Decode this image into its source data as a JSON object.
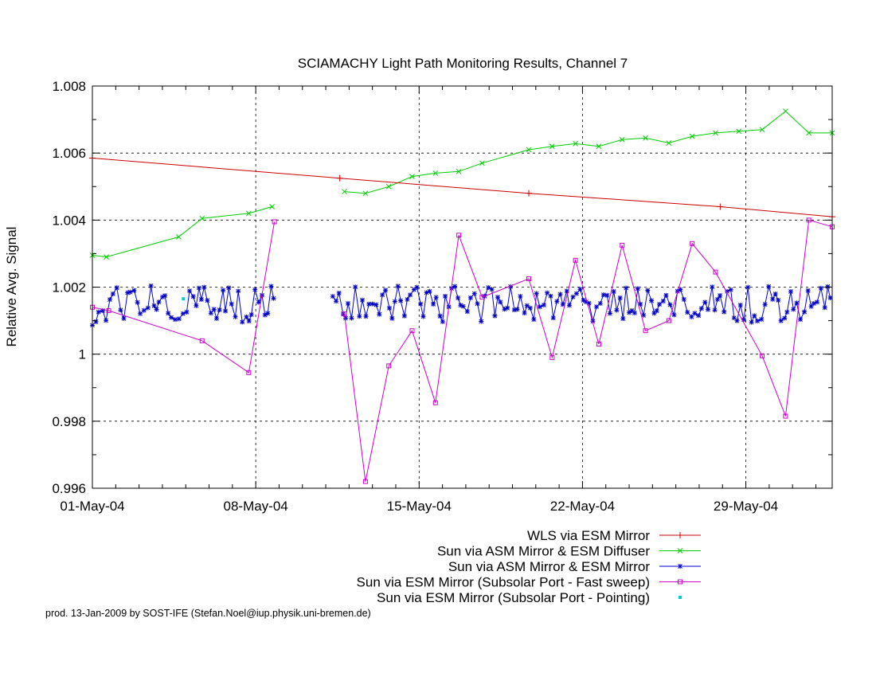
{
  "chart_data": {
    "type": "line",
    "title": "SCIAMACHY Light Path Monitoring Results, Channel 7",
    "xlabel": "",
    "ylabel": "Relative Avg. Signal",
    "xlim": [
      0,
      31.7
    ],
    "ylim": [
      0.996,
      1.008
    ],
    "grid": true,
    "legend_placement": "below",
    "x_ticks": [
      {
        "value": 0,
        "label": "01-May-04"
      },
      {
        "value": 7,
        "label": "08-May-04"
      },
      {
        "value": 14,
        "label": "15-May-04"
      },
      {
        "value": 21,
        "label": "22-May-04"
      },
      {
        "value": 28,
        "label": "29-May-04"
      }
    ],
    "y_ticks": [
      {
        "value": 0.996,
        "label": "0.996"
      },
      {
        "value": 0.998,
        "label": "0.998"
      },
      {
        "value": 1.0,
        "label": "1"
      },
      {
        "value": 1.002,
        "label": "1.002"
      },
      {
        "value": 1.004,
        "label": "1.004"
      },
      {
        "value": 1.006,
        "label": "1.006"
      },
      {
        "value": 1.008,
        "label": "1.008"
      }
    ],
    "series": [
      {
        "name": "WLS via ESM Mirror",
        "color": "#cc0000",
        "marker": "plus",
        "points": [
          [
            0,
            1.00585
          ],
          [
            10.6,
            1.00525
          ],
          [
            18.7,
            1.0048
          ],
          [
            26.9,
            1.0044
          ],
          [
            31.7,
            1.0041
          ]
        ]
      },
      {
        "name": "Sun via ASM Mirror & ESM Diffuser",
        "color": "#00cc00",
        "marker": "x",
        "points": [
          [
            0,
            1.00295
          ],
          [
            0.6,
            1.0029
          ],
          [
            3.7,
            1.0035
          ],
          [
            4.7,
            1.00405
          ],
          [
            6.7,
            1.0042
          ],
          [
            7.7,
            1.0044
          ],
          null,
          [
            10.8,
            1.00485
          ],
          [
            11.7,
            1.0048
          ],
          [
            12.7,
            1.005
          ],
          [
            13.7,
            1.0053
          ],
          [
            14.7,
            1.0054
          ],
          [
            15.7,
            1.00545
          ],
          [
            16.7,
            1.0057
          ],
          [
            18.7,
            1.0061
          ],
          [
            19.7,
            1.0062
          ],
          [
            20.7,
            1.00628
          ],
          [
            21.7,
            1.0062
          ],
          [
            22.7,
            1.0064
          ],
          [
            23.7,
            1.00645
          ],
          [
            24.7,
            1.0063
          ],
          [
            25.7,
            1.0065
          ],
          [
            26.7,
            1.0066
          ],
          [
            27.7,
            1.00665
          ],
          [
            28.7,
            1.0067
          ],
          [
            29.7,
            1.00725
          ],
          [
            30.7,
            1.0066
          ],
          [
            31.7,
            1.0066
          ]
        ]
      },
      {
        "name": "Sun via ASM Mirror & ESM Mirror",
        "color": "#0000cc",
        "marker": "star",
        "points": "noisy-around-1.0015"
      },
      {
        "name": "Sun via ESM Mirror (Subsolar Port - Fast sweep)",
        "color": "#cc00cc",
        "marker": "square",
        "points": [
          [
            0,
            1.0014
          ],
          [
            0.7,
            1.0013
          ],
          [
            4.7,
            1.0004
          ],
          [
            6.7,
            0.99945
          ],
          [
            7.8,
            1.00395
          ],
          null,
          [
            10.8,
            1.0012
          ],
          [
            11.7,
            0.9962
          ],
          [
            12.7,
            0.99965
          ],
          [
            13.7,
            1.0007
          ],
          [
            14.7,
            0.99855
          ],
          [
            15.7,
            1.00355
          ],
          [
            16.7,
            1.0017
          ],
          [
            18.7,
            1.00225
          ],
          [
            19.7,
            0.9999
          ],
          [
            20.7,
            1.0028
          ],
          [
            21.7,
            1.0003
          ],
          [
            22.7,
            1.00325
          ],
          [
            23.7,
            1.0007
          ],
          [
            24.7,
            1.001
          ],
          [
            25.7,
            1.0033
          ],
          [
            26.7,
            1.00245
          ],
          [
            28.7,
            0.99995
          ],
          [
            29.7,
            0.99815
          ],
          [
            30.7,
            1.004
          ],
          [
            31.7,
            1.0038
          ]
        ]
      },
      {
        "name": "Sun via ESM Mirror (Subsolar Port - Pointing)",
        "color": "#00cccc",
        "marker": "dot",
        "points": [
          [
            3.9,
            1.00165
          ]
        ]
      }
    ]
  },
  "footer": "prod. 13-Jan-2009 by SOST-IFE (Stefan.Noel@iup.physik.uni-bremen.de)"
}
